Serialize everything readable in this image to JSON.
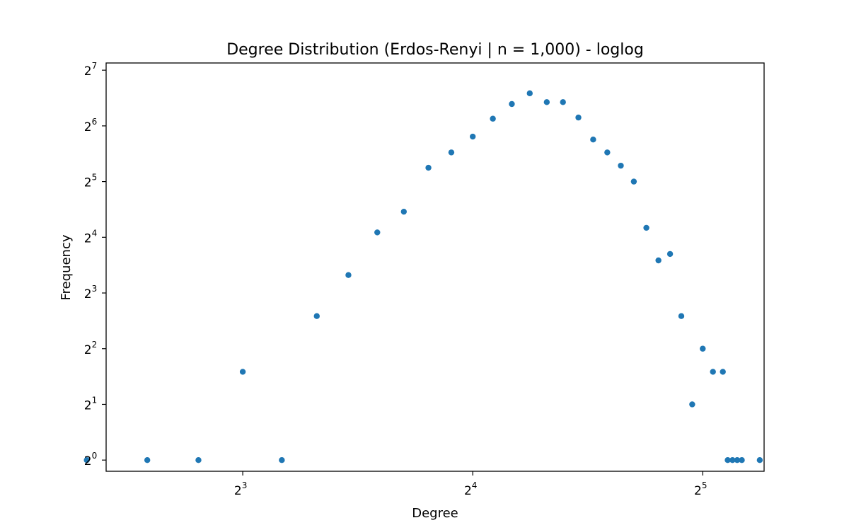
{
  "chart_data": {
    "type": "scatter",
    "title": "Degree Distribution (Erdos-Renyi | n = 1,000) - loglog",
    "xlabel": "Degree",
    "ylabel": "Frequency",
    "x_scale": "log2",
    "y_scale": "log2",
    "xlim": [
      5.3,
      38.5
    ],
    "ylim": [
      0.87,
      140
    ],
    "grid": false,
    "marker_color": "#1f77b4",
    "x_ticks": [
      {
        "base": "2",
        "exp": "3",
        "value": 8
      },
      {
        "base": "2",
        "exp": "4",
        "value": 16
      },
      {
        "base": "2",
        "exp": "5",
        "value": 32
      }
    ],
    "y_ticks": [
      {
        "base": "2",
        "exp": "0",
        "value": 1
      },
      {
        "base": "2",
        "exp": "1",
        "value": 2
      },
      {
        "base": "2",
        "exp": "2",
        "value": 4
      },
      {
        "base": "2",
        "exp": "3",
        "value": 8
      },
      {
        "base": "2",
        "exp": "4",
        "value": 16
      },
      {
        "base": "2",
        "exp": "5",
        "value": 32
      },
      {
        "base": "2",
        "exp": "6",
        "value": 64
      },
      {
        "base": "2",
        "exp": "7",
        "value": 128
      }
    ],
    "points": [
      {
        "x": 5,
        "y": 1
      },
      {
        "x": 6,
        "y": 1
      },
      {
        "x": 7,
        "y": 1
      },
      {
        "x": 8,
        "y": 3
      },
      {
        "x": 9,
        "y": 1
      },
      {
        "x": 10,
        "y": 6
      },
      {
        "x": 11,
        "y": 10
      },
      {
        "x": 12,
        "y": 17
      },
      {
        "x": 13,
        "y": 22
      },
      {
        "x": 14,
        "y": 38
      },
      {
        "x": 15,
        "y": 46
      },
      {
        "x": 16,
        "y": 56
      },
      {
        "x": 17,
        "y": 70
      },
      {
        "x": 18,
        "y": 84
      },
      {
        "x": 19,
        "y": 96
      },
      {
        "x": 20,
        "y": 86
      },
      {
        "x": 21,
        "y": 86
      },
      {
        "x": 22,
        "y": 71
      },
      {
        "x": 23,
        "y": 54
      },
      {
        "x": 24,
        "y": 46
      },
      {
        "x": 25,
        "y": 39
      },
      {
        "x": 26,
        "y": 32
      },
      {
        "x": 27,
        "y": 18
      },
      {
        "x": 28,
        "y": 12
      },
      {
        "x": 29,
        "y": 13
      },
      {
        "x": 30,
        "y": 6
      },
      {
        "x": 31,
        "y": 2
      },
      {
        "x": 32,
        "y": 4
      },
      {
        "x": 33,
        "y": 3
      },
      {
        "x": 34,
        "y": 3
      },
      {
        "x": 34.5,
        "y": 1
      },
      {
        "x": 35,
        "y": 1
      },
      {
        "x": 35.5,
        "y": 1
      },
      {
        "x": 36,
        "y": 1
      },
      {
        "x": 38,
        "y": 1
      }
    ]
  }
}
